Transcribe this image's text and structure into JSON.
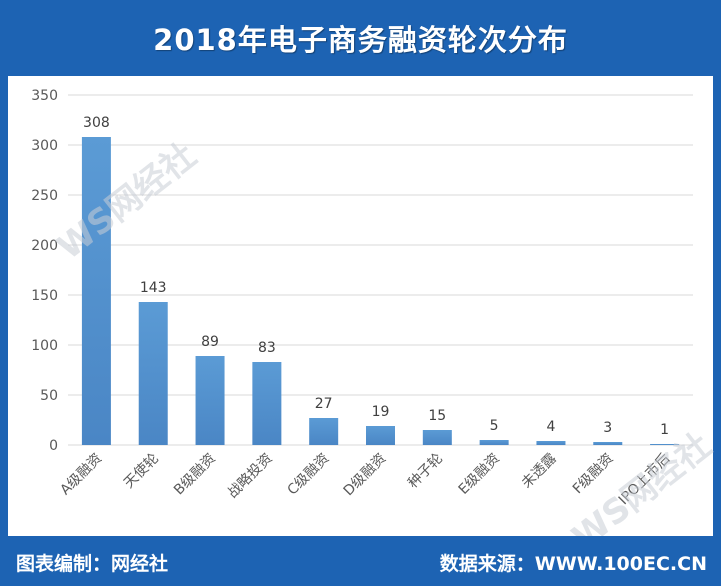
{
  "header": {
    "title": "2018年电子商务融资轮次分布"
  },
  "footer": {
    "left": "图表编制：网经社",
    "right": "数据来源：WWW.100EC.CN"
  },
  "watermark": {
    "text": "WS网经社"
  },
  "colors": {
    "bar": "#5b9bd5",
    "bar_dark": "#4a86c5",
    "brand": "#1d63b3",
    "grid": "#d9d9d9",
    "axis_text": "#595959"
  },
  "chart_data": {
    "type": "bar",
    "title": "2018年电子商务融资轮次分布",
    "xlabel": "",
    "ylabel": "",
    "ylim": [
      0,
      350
    ],
    "yticks": [
      0,
      50,
      100,
      150,
      200,
      250,
      300,
      350
    ],
    "grid": true,
    "categories": [
      "A级融资",
      "天使轮",
      "B级融资",
      "战略投资",
      "C级融资",
      "D级融资",
      "种子轮",
      "E级融资",
      "未透露",
      "F级融资",
      "IPO上市后"
    ],
    "values": [
      308,
      143,
      89,
      83,
      27,
      19,
      15,
      5,
      4,
      3,
      1
    ]
  }
}
